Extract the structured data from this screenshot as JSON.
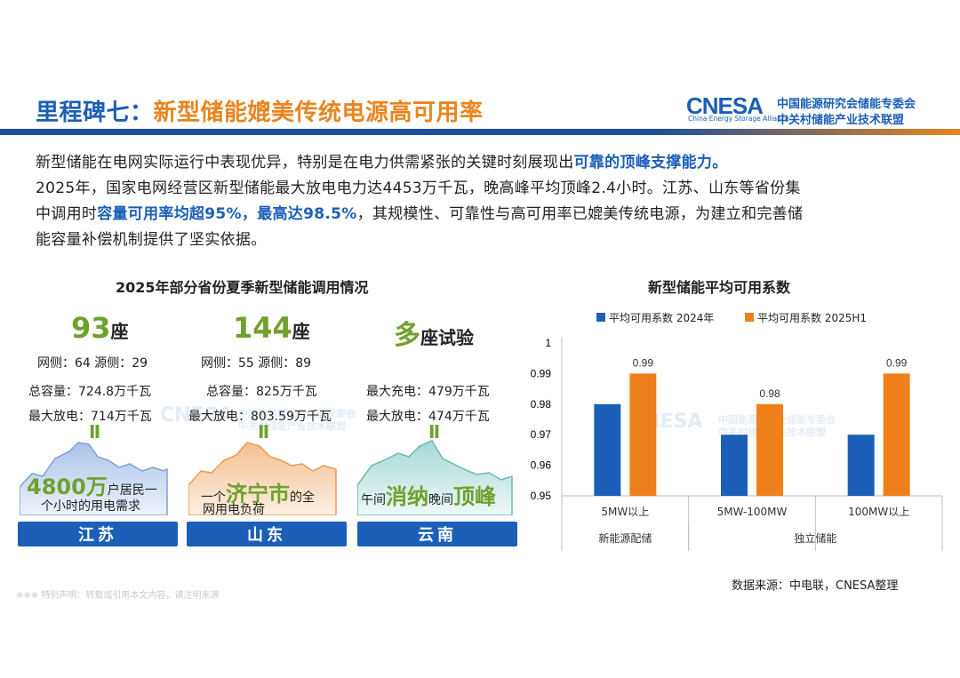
{
  "header": {
    "title_prefix": "里程碑七：",
    "title_main": "新型储能媲美传统电源高可用率",
    "logo_mark": "CNESA",
    "logo_en": "China Energy Storage Alliance",
    "logo_cn1": "中国能源研究会储能专委会",
    "logo_cn2": "中关村储能产业技术联盟"
  },
  "intro": {
    "l1a": "新型储能在电网实际运行中表现优异，特别是在电力供需紧张的关键时刻展现出",
    "l1b": "可靠的顶峰支撑能力。",
    "l2": "2025年，国家电网经营区新型储能最大放电电力达4453万千瓦，晚高峰平均顶峰2.4小时。江苏、山东等省份集",
    "l3a": "中调用时",
    "l3b": "容量可用率均超95%，最高达98.5%",
    "l3c": "，其规模性、可靠性与高可用率已媲美传统电源，为建立和完善储",
    "l4": "能容量补偿机制提供了坚实依据。"
  },
  "left_panel": {
    "title": "2025年部分省份夏季新型储能调用情况",
    "provinces": [
      {
        "num": "93",
        "unit": "座",
        "line1": "网侧：64   源侧：29",
        "line2": "总容量：724.8万千瓦",
        "line3": "最大放电：714万千瓦",
        "eq": "Ⅱ",
        "hl_a": "4800万",
        "txt_a": "户居民一",
        "txt_b": "个小时的用电需求",
        "name": "江苏"
      },
      {
        "num": "144",
        "unit": "座",
        "line1": "网侧：55   源侧：89",
        "line2": "总容量：825万千瓦",
        "line3": "最大放电：803.59万千瓦",
        "eq": "Ⅱ",
        "txt_a": "一个",
        "hl_a": "济宁市",
        "txt_b": "的全",
        "txt_c": "网用电负荷",
        "name": "山东"
      },
      {
        "num": "多",
        "unit": "座试验",
        "line1": "",
        "line2": "最大充电：479万千瓦",
        "line3": "最大放电：474万千瓦",
        "eq": "Ⅱ",
        "txt_a": "午间",
        "hl_a": "消纳",
        "txt_b": "晚间",
        "hl_b": "顶峰",
        "name": "云南"
      }
    ]
  },
  "chart_data": {
    "type": "bar",
    "title": "新型储能平均可用系数",
    "categories": [
      "5MW以上",
      "5MW-100MW",
      "100MW以上"
    ],
    "groups": [
      {
        "label": "新能源配储",
        "categories": [
          "5MW以上"
        ]
      },
      {
        "label": "独立储能",
        "categories": [
          "5MW-100MW",
          "100MW以上"
        ]
      }
    ],
    "series": [
      {
        "name": "平均可用系数 2024年",
        "color": "#1b5fb8",
        "values": [
          0.98,
          0.97,
          0.97
        ]
      },
      {
        "name": "平均可用系数 2025H1",
        "color": "#ef7f1a",
        "values": [
          0.99,
          0.98,
          0.99
        ]
      }
    ],
    "data_labels": [
      "",
      "0.99",
      "",
      "0.98",
      "",
      "0.99"
    ],
    "ylim": [
      0.95,
      1.0
    ],
    "yticks": [
      "0.95",
      "0.96",
      "0.97",
      "0.98",
      "0.99",
      "1"
    ],
    "legend": "top",
    "grid": false
  },
  "footer": {
    "source": "数据来源：中电联，CNESA整理",
    "disclaimer": "※※※ 特别声明：转载或引用本文内容，请注明来源"
  }
}
